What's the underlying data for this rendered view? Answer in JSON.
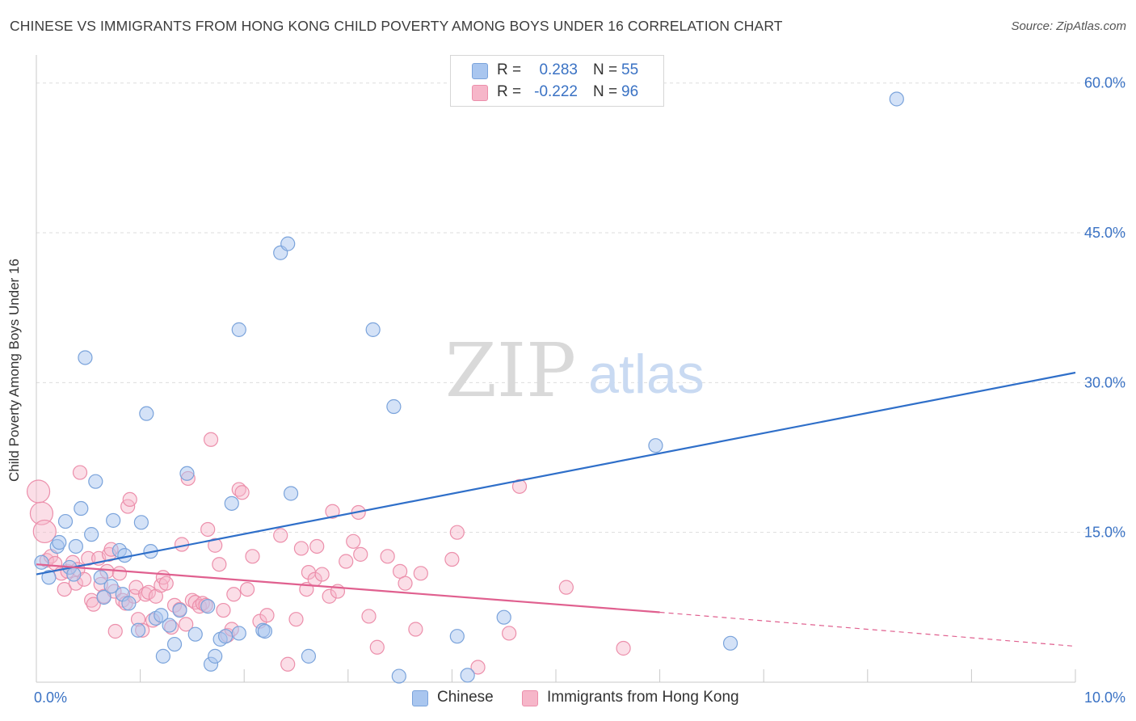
{
  "title": "CHINESE VS IMMIGRANTS FROM HONG KONG CHILD POVERTY AMONG BOYS UNDER 16 CORRELATION CHART",
  "source": "Source: ZipAtlas.com",
  "watermark": {
    "zip": "ZIP",
    "atlas": "atlas"
  },
  "legend": {
    "chinese": {
      "r_label": "R =",
      "r_value": "0.283",
      "n_label": "N =",
      "n_value": "55"
    },
    "hongkong": {
      "r_label": "R =",
      "r_value": "-0.222",
      "n_label": "N =",
      "n_value": "96"
    }
  },
  "bottom_legend": {
    "chinese": "Chinese",
    "hongkong": "Immigrants from Hong Kong"
  },
  "colors": {
    "chinese_fill": "#a9c6ef",
    "chinese_stroke": "#7aa3db",
    "chinese_line": "#2f6fc9",
    "hk_fill": "#f6b6c9",
    "hk_stroke": "#ec8fab",
    "hk_line": "#e0608f",
    "axis_label": "#3a72c4",
    "grid": "#dddddd"
  },
  "chart_data": {
    "type": "scatter",
    "title": "CHINESE VS IMMIGRANTS FROM HONG KONG CHILD POVERTY AMONG BOYS UNDER 16 CORRELATION CHART",
    "xlabel": "",
    "ylabel": "Child Poverty Among Boys Under 16",
    "xlim": [
      0,
      10
    ],
    "ylim": [
      0,
      62
    ],
    "x_tick_labels": [
      "0.0%",
      "10.0%"
    ],
    "y_ticks": [
      15,
      30,
      45,
      60
    ],
    "y_tick_labels": [
      "15.0%",
      "30.0%",
      "45.0%",
      "60.0%"
    ],
    "grid": true,
    "series": [
      {
        "name": "Chinese",
        "r": 0.283,
        "n": 55,
        "trend": {
          "x0": 0,
          "y0": 10.8,
          "x1": 10,
          "y1": 31.0
        },
        "points": [
          [
            0.05,
            12.0
          ],
          [
            0.12,
            10.5
          ],
          [
            0.2,
            13.6
          ],
          [
            0.22,
            14.0
          ],
          [
            0.28,
            16.1
          ],
          [
            0.32,
            11.5
          ],
          [
            0.36,
            10.8
          ],
          [
            0.38,
            13.6
          ],
          [
            0.43,
            17.4
          ],
          [
            0.47,
            32.5
          ],
          [
            0.53,
            14.8
          ],
          [
            0.57,
            20.1
          ],
          [
            0.62,
            10.5
          ],
          [
            0.65,
            8.5
          ],
          [
            0.72,
            9.6
          ],
          [
            0.74,
            16.2
          ],
          [
            0.8,
            13.2
          ],
          [
            0.83,
            8.8
          ],
          [
            0.85,
            12.7
          ],
          [
            0.89,
            7.9
          ],
          [
            0.98,
            5.2
          ],
          [
            1.01,
            16.0
          ],
          [
            1.06,
            26.9
          ],
          [
            1.1,
            13.1
          ],
          [
            1.15,
            6.4
          ],
          [
            1.2,
            6.7
          ],
          [
            1.22,
            2.6
          ],
          [
            1.28,
            5.7
          ],
          [
            1.33,
            3.8
          ],
          [
            1.38,
            7.2
          ],
          [
            1.45,
            20.9
          ],
          [
            1.53,
            4.8
          ],
          [
            1.65,
            7.6
          ],
          [
            1.68,
            1.8
          ],
          [
            1.72,
            2.6
          ],
          [
            1.77,
            4.3
          ],
          [
            1.82,
            4.6
          ],
          [
            1.88,
            17.9
          ],
          [
            1.95,
            4.9
          ],
          [
            1.95,
            35.3
          ],
          [
            2.18,
            5.2
          ],
          [
            2.2,
            5.1
          ],
          [
            2.35,
            43.0
          ],
          [
            2.42,
            43.9
          ],
          [
            2.45,
            18.9
          ],
          [
            2.62,
            2.6
          ],
          [
            3.24,
            35.3
          ],
          [
            3.44,
            27.6
          ],
          [
            3.49,
            0.6
          ],
          [
            4.05,
            4.6
          ],
          [
            4.15,
            0.7
          ],
          [
            4.5,
            6.5
          ],
          [
            5.96,
            23.7
          ],
          [
            6.68,
            3.9
          ],
          [
            8.28,
            58.4
          ]
        ]
      },
      {
        "name": "Immigrants from Hong Kong",
        "r": -0.222,
        "n": 96,
        "trend": {
          "x0": 0,
          "y0": 11.8,
          "x1": 6.0,
          "y1": 7.0,
          "dashed_to_x": 10,
          "dashed_to_y": 3.6
        },
        "points": [
          [
            0.02,
            19.1
          ],
          [
            0.05,
            16.9
          ],
          [
            0.08,
            15.1
          ],
          [
            0.1,
            12.2
          ],
          [
            0.14,
            12.6
          ],
          [
            0.18,
            11.9
          ],
          [
            0.24,
            10.9
          ],
          [
            0.27,
            9.3
          ],
          [
            0.3,
            11.1
          ],
          [
            0.35,
            12.0
          ],
          [
            0.38,
            9.9
          ],
          [
            0.4,
            11.3
          ],
          [
            0.42,
            21.0
          ],
          [
            0.46,
            10.3
          ],
          [
            0.5,
            12.4
          ],
          [
            0.53,
            8.2
          ],
          [
            0.55,
            7.8
          ],
          [
            0.6,
            12.4
          ],
          [
            0.62,
            9.8
          ],
          [
            0.65,
            8.6
          ],
          [
            0.68,
            11.1
          ],
          [
            0.7,
            12.8
          ],
          [
            0.72,
            13.3
          ],
          [
            0.75,
            9.1
          ],
          [
            0.76,
            5.1
          ],
          [
            0.8,
            10.9
          ],
          [
            0.83,
            8.2
          ],
          [
            0.86,
            7.9
          ],
          [
            0.88,
            17.6
          ],
          [
            0.9,
            18.3
          ],
          [
            0.94,
            8.6
          ],
          [
            0.96,
            9.5
          ],
          [
            0.98,
            6.3
          ],
          [
            1.02,
            5.2
          ],
          [
            1.05,
            8.8
          ],
          [
            1.08,
            9.0
          ],
          [
            1.12,
            6.2
          ],
          [
            1.15,
            8.6
          ],
          [
            1.2,
            9.7
          ],
          [
            1.22,
            10.5
          ],
          [
            1.25,
            9.9
          ],
          [
            1.3,
            5.5
          ],
          [
            1.33,
            7.7
          ],
          [
            1.38,
            7.3
          ],
          [
            1.4,
            13.8
          ],
          [
            1.44,
            5.8
          ],
          [
            1.46,
            20.4
          ],
          [
            1.5,
            8.2
          ],
          [
            1.53,
            8.0
          ],
          [
            1.57,
            7.6
          ],
          [
            1.6,
            7.9
          ],
          [
            1.63,
            7.7
          ],
          [
            1.65,
            15.3
          ],
          [
            1.68,
            24.3
          ],
          [
            1.72,
            13.7
          ],
          [
            1.76,
            11.8
          ],
          [
            1.8,
            7.2
          ],
          [
            1.84,
            4.7
          ],
          [
            1.88,
            5.3
          ],
          [
            1.9,
            8.8
          ],
          [
            1.95,
            19.3
          ],
          [
            1.98,
            19.0
          ],
          [
            2.03,
            9.3
          ],
          [
            2.08,
            12.6
          ],
          [
            2.15,
            6.1
          ],
          [
            2.22,
            6.7
          ],
          [
            2.35,
            14.7
          ],
          [
            2.42,
            1.8
          ],
          [
            2.5,
            6.3
          ],
          [
            2.55,
            13.4
          ],
          [
            2.6,
            9.3
          ],
          [
            2.62,
            11.0
          ],
          [
            2.68,
            10.3
          ],
          [
            2.7,
            13.6
          ],
          [
            2.75,
            10.8
          ],
          [
            2.82,
            8.6
          ],
          [
            2.85,
            17.1
          ],
          [
            2.9,
            9.1
          ],
          [
            2.98,
            12.1
          ],
          [
            3.05,
            14.1
          ],
          [
            3.1,
            17.0
          ],
          [
            3.12,
            12.8
          ],
          [
            3.2,
            6.6
          ],
          [
            3.28,
            3.5
          ],
          [
            3.38,
            12.6
          ],
          [
            3.5,
            11.1
          ],
          [
            3.55,
            9.9
          ],
          [
            3.65,
            5.3
          ],
          [
            3.7,
            10.9
          ],
          [
            4.0,
            12.3
          ],
          [
            4.05,
            15.0
          ],
          [
            4.25,
            1.5
          ],
          [
            4.55,
            4.9
          ],
          [
            4.65,
            19.6
          ],
          [
            5.1,
            9.5
          ],
          [
            5.65,
            3.4
          ]
        ]
      }
    ]
  }
}
